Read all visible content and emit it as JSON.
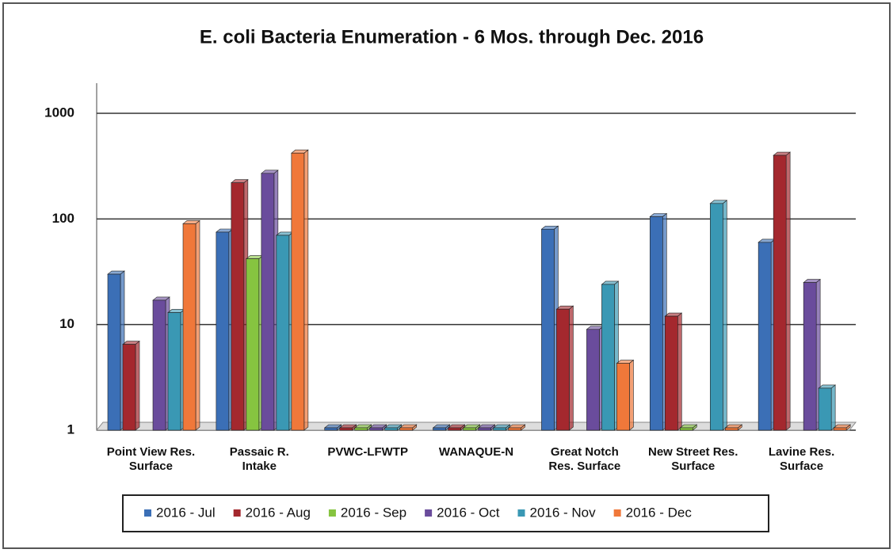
{
  "chart_data": {
    "type": "bar",
    "title": "E. coli Bacteria Enumeration - 6 Mos. through Dec. 2016",
    "categories": [
      "Point View Res. Surface",
      "Passaic R. Intake",
      "PVWC-LFWTP",
      "WANAQUE-N",
      "Great Notch Res. Surface",
      "New Street Res. Surface",
      "Lavine Res. Surface"
    ],
    "series": [
      {
        "name": "2016 - Jul",
        "color": "#3b6fb6",
        "values": [
          30,
          75,
          1,
          1,
          80,
          105,
          60
        ]
      },
      {
        "name": "2016 - Aug",
        "color": "#a4282e",
        "values": [
          6.5,
          220,
          1,
          1,
          14,
          12,
          400
        ]
      },
      {
        "name": "2016 - Sep",
        "color": "#86c440",
        "values": [
          null,
          42,
          1,
          1,
          null,
          1,
          null
        ]
      },
      {
        "name": "2016 - Oct",
        "color": "#6a4c9c",
        "values": [
          17,
          270,
          1,
          1,
          9,
          null,
          25
        ]
      },
      {
        "name": "2016 - Nov",
        "color": "#3a98b4",
        "values": [
          13,
          70,
          1,
          1,
          24,
          140,
          2.5
        ]
      },
      {
        "name": "2016 - Dec",
        "color": "#f0783a",
        "values": [
          90,
          420,
          1,
          1,
          4.3,
          1,
          1
        ]
      }
    ],
    "ylim": [
      1,
      1000
    ],
    "yticks": [
      1,
      10,
      100,
      1000
    ],
    "log_scale": true,
    "grid": true,
    "legend": "bottom"
  }
}
